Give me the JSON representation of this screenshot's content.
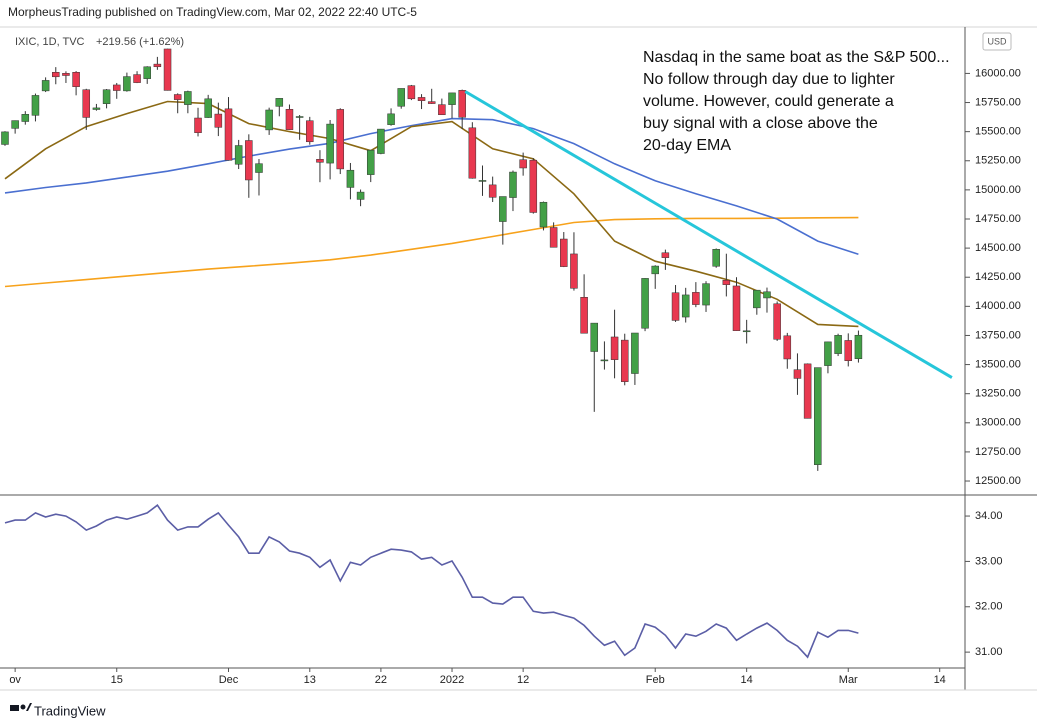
{
  "header": {
    "publisher": "MorpheusTrading published on TradingView.com, Mar 02, 2022 22:40 UTC-5",
    "symbol": "IXIC, 1D, TVC",
    "change": "+219.56 (+1.62%)",
    "currency": "USD"
  },
  "footer": "TradingView",
  "chart_data": [
    {
      "type": "candlestick",
      "annotation": [
        "Nasdaq in the same boat as the S&P 500...",
        "No follow through day due to lighter",
        "volume.  However, could generate a",
        "buy signal with a close above the",
        "20-day EMA"
      ],
      "up_color": "#43a047",
      "down_color": "#e8384f",
      "wick_color": "#333333",
      "open": [
        15390,
        15528,
        15587,
        15640,
        15850,
        16010,
        16001,
        16010,
        15860,
        15690,
        15740,
        15901,
        15850,
        15990,
        15955,
        16080,
        16210,
        15819,
        15732,
        15617,
        15621,
        15651,
        15696,
        15220,
        15424,
        15149,
        15515,
        15717,
        15692,
        15623,
        15594,
        15263,
        15230,
        15691,
        15021,
        14918,
        15131,
        15312,
        15560,
        15718,
        15895,
        15794,
        15758,
        15732,
        15732,
        15855,
        15533,
        15075,
        15043,
        14728,
        14934,
        15259,
        15255,
        14681,
        14677,
        14578,
        14450,
        14078,
        13612,
        13540,
        13737,
        13710,
        13423,
        13812,
        14279,
        14460,
        14117,
        13908,
        14120,
        14011,
        14344,
        14224,
        14175,
        13785,
        13987,
        14072,
        14022,
        13747,
        13456,
        13506,
        12640,
        13491,
        13594,
        13707,
        13550
      ],
      "high": [
        15504,
        15596,
        15676,
        15827,
        15966,
        16054,
        16018,
        16020,
        15868,
        15738,
        15866,
        15918,
        16007,
        16019,
        16062,
        16142,
        16212,
        15829,
        15852,
        15705,
        15816,
        15749,
        15797,
        15429,
        15477,
        15265,
        15706,
        15787,
        15733,
        15643,
        15627,
        15341,
        15600,
        15701,
        15231,
        15003,
        15343,
        15523,
        15700,
        15871,
        15901,
        15822,
        15868,
        15784,
        15833,
        15861,
        15581,
        15209,
        15114,
        14943,
        15166,
        15320,
        15272,
        14900,
        14721,
        14638,
        14636,
        14275,
        13856,
        13699,
        13971,
        13765,
        13771,
        14242,
        14353,
        14487,
        14183,
        14159,
        14208,
        14216,
        14497,
        14452,
        14250,
        13884,
        14140,
        14161,
        14042,
        13772,
        13596,
        13510,
        13474,
        13696,
        13765,
        13768,
        13792
      ],
      "low": [
        15378,
        15483,
        15560,
        15588,
        15840,
        15907,
        15918,
        15812,
        15515,
        15680,
        15700,
        15782,
        15843,
        15917,
        15910,
        16031,
        15853,
        15658,
        15658,
        15459,
        15618,
        15462,
        15251,
        15179,
        14932,
        14952,
        15472,
        15632,
        15515,
        15430,
        15388,
        15066,
        15090,
        15136,
        14919,
        14860,
        15067,
        15306,
        15551,
        15697,
        15771,
        15694,
        15738,
        15643,
        15614,
        15523,
        15096,
        14949,
        14896,
        14530,
        14818,
        15122,
        14796,
        14652,
        14506,
        14337,
        14135,
        13769,
        13094,
        13457,
        13382,
        13322,
        13325,
        13787,
        14150,
        14313,
        13866,
        13861,
        13993,
        13952,
        14331,
        14085,
        13790,
        13681,
        13928,
        13946,
        13703,
        13464,
        13240,
        13037,
        12587,
        13425,
        13573,
        13484,
        13517
      ],
      "close": [
        15498,
        15595,
        15649,
        15811,
        15940,
        15971,
        15982,
        15886,
        15622,
        15704,
        15860,
        15853,
        15973,
        15921,
        16057,
        16057,
        15854,
        15775,
        15845,
        15491,
        15782,
        15537,
        15254,
        15381,
        15085,
        15225,
        15686,
        15786,
        15517,
        15630,
        15413,
        15237,
        15565,
        15180,
        15169,
        14981,
        15341,
        15522,
        15653,
        15871,
        15782,
        15766,
        15741,
        15645,
        15833,
        15623,
        15100,
        15081,
        14936,
        14943,
        15153,
        15188,
        14806,
        14894,
        14507,
        14341,
        14155,
        13769,
        13856,
        13540,
        13542,
        13353,
        13771,
        14240,
        14346,
        14418,
        13879,
        14098,
        14015,
        14195,
        14490,
        14186,
        13791,
        13790,
        14139,
        14125,
        13717,
        13548,
        13381,
        13038,
        13474,
        13695,
        13751,
        13533,
        13752
      ],
      "series": [
        {
          "color": "#f7a21b",
          "x": [
            0,
            4,
            8,
            12,
            16,
            20,
            24,
            28,
            32,
            36,
            40,
            44,
            48,
            52,
            56,
            60,
            64,
            68,
            72,
            76,
            80,
            84
          ],
          "values": [
            14170,
            14200,
            14230,
            14260,
            14290,
            14320,
            14345,
            14370,
            14400,
            14440,
            14490,
            14540,
            14600,
            14660,
            14720,
            14745,
            14752,
            14755,
            14755,
            14757,
            14760,
            14762
          ]
        },
        {
          "color": "#4a6fd0",
          "x": [
            0,
            4,
            8,
            12,
            16,
            20,
            24,
            28,
            32,
            36,
            40,
            44,
            48,
            52,
            56,
            60,
            64,
            68,
            72,
            76,
            80,
            84
          ],
          "values": [
            14974,
            15020,
            15060,
            15110,
            15160,
            15224,
            15290,
            15350,
            15400,
            15483,
            15552,
            15612,
            15603,
            15526,
            15397,
            15224,
            15078,
            14966,
            14862,
            14750,
            14560,
            14448
          ]
        },
        {
          "color": "#8b6914",
          "x": [
            0,
            4,
            8,
            12,
            16,
            20,
            24,
            28,
            32,
            36,
            40,
            44,
            48,
            52,
            56,
            60,
            64,
            68,
            72,
            76,
            80,
            84
          ],
          "values": [
            15095,
            15353,
            15543,
            15655,
            15759,
            15741,
            15569,
            15500,
            15440,
            15336,
            15543,
            15586,
            15353,
            15267,
            14966,
            14560,
            14388,
            14302,
            14207,
            14060,
            13845,
            13828
          ]
        }
      ],
      "trendline": {
        "color": "#26c6da",
        "x": [
          45.3,
          93.2
        ],
        "values": [
          15845,
          13388
        ]
      },
      "xlim": [
        -0.49,
        94.49
      ],
      "xticks": [
        {
          "value": 1,
          "label": "ov"
        },
        {
          "value": 11,
          "label": "15"
        },
        {
          "value": 22,
          "label": "Dec"
        },
        {
          "value": 30,
          "label": "13"
        },
        {
          "value": 37,
          "label": "22"
        },
        {
          "value": 44,
          "label": "2022"
        },
        {
          "value": 51,
          "label": "12"
        },
        {
          "value": 64,
          "label": "Feb"
        },
        {
          "value": 73,
          "label": "14"
        },
        {
          "value": 83,
          "label": "Mar"
        },
        {
          "value": 92,
          "label": "14"
        }
      ],
      "ylim": [
        12380,
        16390
      ],
      "yticks": [
        {
          "value": 12500,
          "label": "12500.00"
        },
        {
          "value": 12750,
          "label": "12750.00"
        },
        {
          "value": 13000,
          "label": "13000.00"
        },
        {
          "value": 13250,
          "label": "13250.00"
        },
        {
          "value": 13500,
          "label": "13500.00"
        },
        {
          "value": 13750,
          "label": "13750.00"
        },
        {
          "value": 14000,
          "label": "14000.00"
        },
        {
          "value": 14250,
          "label": "14250.00"
        },
        {
          "value": 14500,
          "label": "14500.00"
        },
        {
          "value": 14750,
          "label": "14750.00"
        },
        {
          "value": 15000,
          "label": "15000.00"
        },
        {
          "value": 15250,
          "label": "15250.00"
        },
        {
          "value": 15500,
          "label": "15500.00"
        },
        {
          "value": 15750,
          "label": "15750.00"
        },
        {
          "value": 16000,
          "label": "16000.00"
        }
      ],
      "grid": false
    },
    {
      "type": "line",
      "series": [
        {
          "color": "#5b5ea6",
          "values": [
            33.85,
            33.91,
            33.91,
            34.07,
            33.98,
            34.04,
            34.0,
            33.87,
            33.69,
            33.78,
            33.91,
            33.98,
            33.93,
            34.0,
            34.07,
            34.24,
            33.91,
            33.69,
            33.76,
            33.76,
            33.93,
            34.07,
            33.8,
            33.54,
            33.18,
            33.18,
            33.54,
            33.43,
            33.23,
            33.18,
            33.09,
            32.87,
            33.03,
            32.57,
            32.98,
            32.92,
            33.09,
            33.18,
            33.27,
            33.25,
            33.21,
            33.05,
            33.09,
            32.92,
            33.01,
            32.65,
            32.21,
            32.21,
            32.08,
            32.06,
            32.21,
            32.21,
            31.9,
            31.86,
            31.88,
            31.81,
            31.75,
            31.59,
            31.35,
            31.15,
            31.24,
            30.93,
            31.09,
            31.62,
            31.55,
            31.37,
            31.09,
            31.4,
            31.35,
            31.46,
            31.62,
            31.53,
            31.26,
            31.4,
            31.53,
            31.64,
            31.48,
            31.26,
            31.13,
            30.89,
            31.44,
            31.33,
            31.48,
            31.48,
            31.42
          ]
        }
      ],
      "xlim": [
        -0.49,
        94.49
      ],
      "ylim": [
        30.65,
        34.42
      ],
      "yticks": [
        {
          "value": 31,
          "label": "31.00"
        },
        {
          "value": 32,
          "label": "32.00"
        },
        {
          "value": 33,
          "label": "33.00"
        },
        {
          "value": 34,
          "label": "34.00"
        }
      ],
      "grid": false
    }
  ]
}
